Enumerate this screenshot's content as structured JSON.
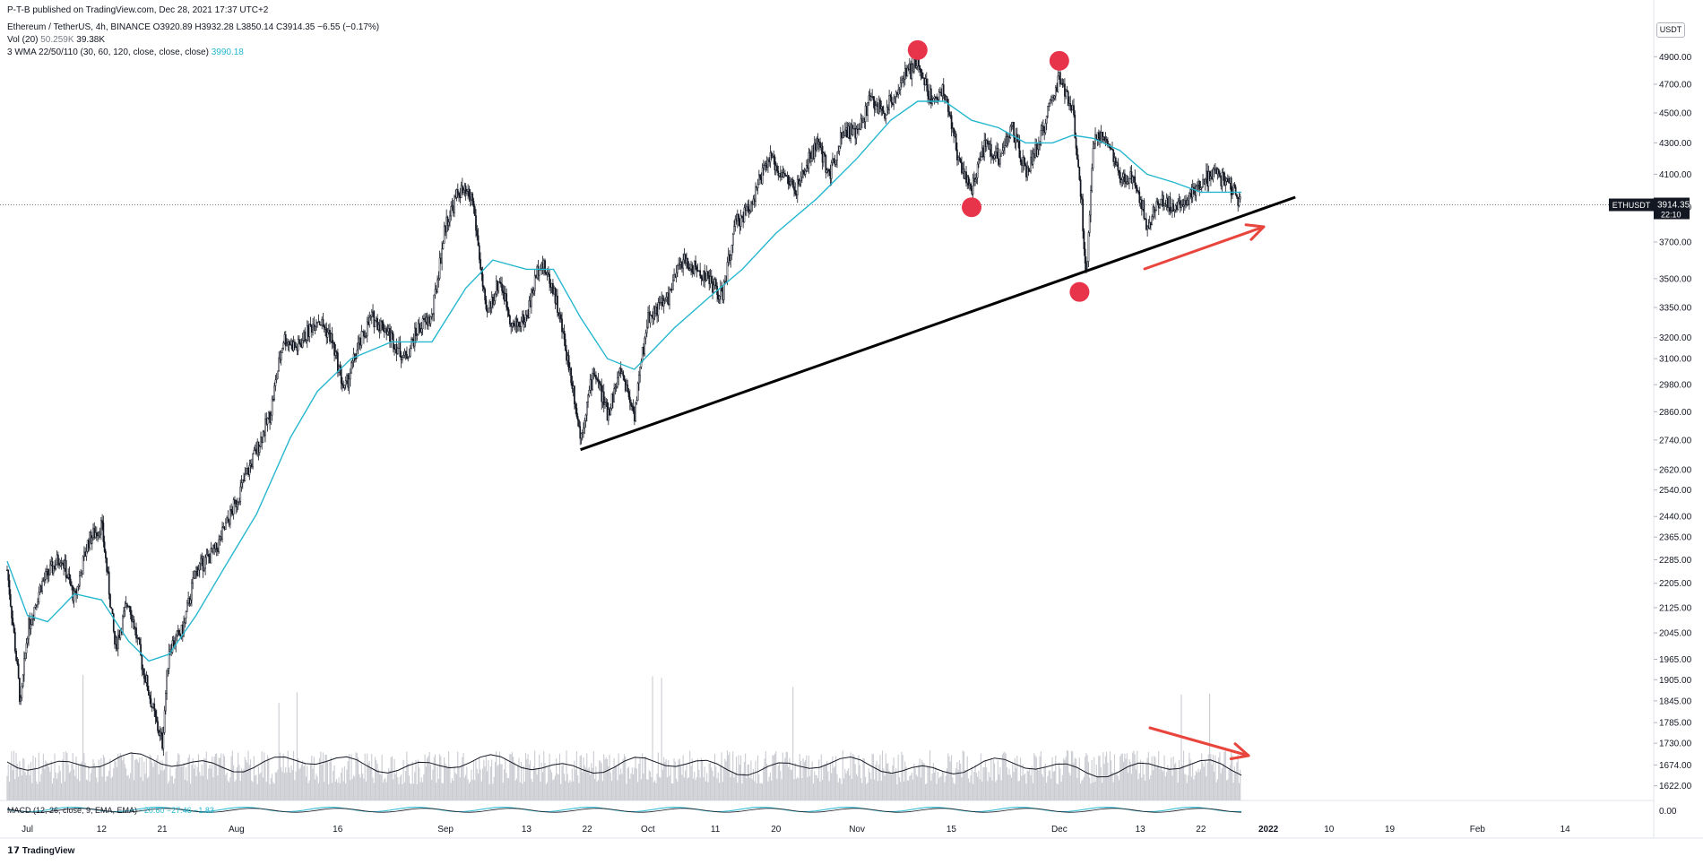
{
  "header": {
    "published": "P-T-B published on TradingView.com, Dec 28, 2021 17:37 UTC+2",
    "symbol_line": "Ethereum / TetherUS, 4h, BINANCE  O3920.89  H3932.28  L3850.14  C3914.35  −6.55 (−0.17%)",
    "vol_label": "Vol (20)",
    "vol_ma": "50.259K",
    "vol_value": "39.38K",
    "wma_label": "3 WMA 22/50/110 (30, 60, 120, close, close, close)",
    "wma_value": "3990.18",
    "macd_label": "MACD (12, 26, close, 9, EMA, EMA)",
    "macd_values": "−20.60   −27.46   −1.83"
  },
  "currency_badge": "USDT",
  "price_tag": {
    "symbol": "ETHUSDT",
    "price": "3914.35",
    "countdown": "22:10"
  },
  "footer": {
    "logo": "TradingView"
  },
  "colors": {
    "candle": "#131722",
    "wma": "#26b7cf",
    "volume": "#c9cbd1",
    "annotation_dot": "#e8344a",
    "arrow": "#e8453c",
    "trendline": "#000000"
  },
  "chart_data": {
    "type": "candlestick",
    "timeframe": "4h",
    "y_scale": "log",
    "y_ticks": [
      "4900.00",
      "4700.00",
      "4500.00",
      "4300.00",
      "4100.00",
      "3900.00",
      "3700.00",
      "3500.00",
      "3350.00",
      "3200.00",
      "3100.00",
      "2980.00",
      "2860.00",
      "2740.00",
      "2620.00",
      "2540.00",
      "2440.00",
      "2365.00",
      "2285.00",
      "2205.00",
      "2125.00",
      "2045.00",
      "1965.00",
      "1905.00",
      "1845.00",
      "1785.00",
      "1730.00",
      "1674.00",
      "1622.00"
    ],
    "macd_tick": "0.00",
    "x_ticks": [
      "Jul",
      "12",
      "21",
      "Aug",
      "16",
      "Sep",
      "13",
      "22",
      "Oct",
      "11",
      "20",
      "Nov",
      "15",
      "Dec",
      "13",
      "22",
      "2022",
      "10",
      "19",
      "Feb",
      "14"
    ],
    "price_path": [
      [
        "2021-06-28",
        2250
      ],
      [
        "2021-06-30",
        1830
      ],
      [
        "2021-07-01",
        2050
      ],
      [
        "2021-07-03",
        2200
      ],
      [
        "2021-07-06",
        2300
      ],
      [
        "2021-07-08",
        2150
      ],
      [
        "2021-07-10",
        2350
      ],
      [
        "2021-07-12",
        2410
      ],
      [
        "2021-07-14",
        2000
      ],
      [
        "2021-07-16",
        2150
      ],
      [
        "2021-07-18",
        1950
      ],
      [
        "2021-07-20",
        1790
      ],
      [
        "2021-07-21",
        1730
      ],
      [
        "2021-07-22",
        2000
      ],
      [
        "2021-07-24",
        2050
      ],
      [
        "2021-07-26",
        2250
      ],
      [
        "2021-07-29",
        2320
      ],
      [
        "2021-08-01",
        2500
      ],
      [
        "2021-08-04",
        2700
      ],
      [
        "2021-08-06",
        2850
      ],
      [
        "2021-08-08",
        3200
      ],
      [
        "2021-08-10",
        3150
      ],
      [
        "2021-08-13",
        3300
      ],
      [
        "2021-08-15",
        3200
      ],
      [
        "2021-08-17",
        2950
      ],
      [
        "2021-08-19",
        3150
      ],
      [
        "2021-08-21",
        3300
      ],
      [
        "2021-08-23",
        3250
      ],
      [
        "2021-08-26",
        3100
      ],
      [
        "2021-08-28",
        3250
      ],
      [
        "2021-08-30",
        3300
      ],
      [
        "2021-09-01",
        3800
      ],
      [
        "2021-09-03",
        4000
      ],
      [
        "2021-09-05",
        3950
      ],
      [
        "2021-09-07",
        3300
      ],
      [
        "2021-09-09",
        3500
      ],
      [
        "2021-09-11",
        3250
      ],
      [
        "2021-09-13",
        3300
      ],
      [
        "2021-09-15",
        3600
      ],
      [
        "2021-09-17",
        3450
      ],
      [
        "2021-09-20",
        2950
      ],
      [
        "2021-09-21",
        2750
      ],
      [
        "2021-09-23",
        3050
      ],
      [
        "2021-09-25",
        2850
      ],
      [
        "2021-09-27",
        3050
      ],
      [
        "2021-09-29",
        2850
      ],
      [
        "2021-10-01",
        3300
      ],
      [
        "2021-10-04",
        3400
      ],
      [
        "2021-10-06",
        3600
      ],
      [
        "2021-10-08",
        3550
      ],
      [
        "2021-10-10",
        3500
      ],
      [
        "2021-10-12",
        3400
      ],
      [
        "2021-10-14",
        3800
      ],
      [
        "2021-10-16",
        3900
      ],
      [
        "2021-10-19",
        4200
      ],
      [
        "2021-10-21",
        4100
      ],
      [
        "2021-10-23",
        4000
      ],
      [
        "2021-10-26",
        4300
      ],
      [
        "2021-10-28",
        4100
      ],
      [
        "2021-10-30",
        4400
      ],
      [
        "2021-11-01",
        4350
      ],
      [
        "2021-11-03",
        4600
      ],
      [
        "2021-11-05",
        4500
      ],
      [
        "2021-11-08",
        4750
      ],
      [
        "2021-11-10",
        4850
      ],
      [
        "2021-11-12",
        4600
      ],
      [
        "2021-11-14",
        4650
      ],
      [
        "2021-11-16",
        4200
      ],
      [
        "2021-11-18",
        4000
      ],
      [
        "2021-11-20",
        4300
      ],
      [
        "2021-11-22",
        4200
      ],
      [
        "2021-11-24",
        4400
      ],
      [
        "2021-11-26",
        4100
      ],
      [
        "2021-11-28",
        4300
      ],
      [
        "2021-11-30",
        4600
      ],
      [
        "2021-12-01",
        4750
      ],
      [
        "2021-12-03",
        4500
      ],
      [
        "2021-12-04",
        4100
      ],
      [
        "2021-12-05",
        3500
      ],
      [
        "2021-12-06",
        4300
      ],
      [
        "2021-12-08",
        4350
      ],
      [
        "2021-12-10",
        4050
      ],
      [
        "2021-12-12",
        4100
      ],
      [
        "2021-12-14",
        3800
      ],
      [
        "2021-12-16",
        3950
      ],
      [
        "2021-12-18",
        3900
      ],
      [
        "2021-12-20",
        3950
      ],
      [
        "2021-12-22",
        4050
      ],
      [
        "2021-12-24",
        4100
      ],
      [
        "2021-12-26",
        4050
      ],
      [
        "2021-12-28",
        3914.35
      ]
    ],
    "wma_path": [
      [
        "2021-06-28",
        2280
      ],
      [
        "2021-07-01",
        2100
      ],
      [
        "2021-07-04",
        2080
      ],
      [
        "2021-07-08",
        2170
      ],
      [
        "2021-07-12",
        2150
      ],
      [
        "2021-07-16",
        2020
      ],
      [
        "2021-07-19",
        1960
      ],
      [
        "2021-07-22",
        1980
      ],
      [
        "2021-07-26",
        2100
      ],
      [
        "2021-07-30",
        2250
      ],
      [
        "2021-08-04",
        2450
      ],
      [
        "2021-08-09",
        2750
      ],
      [
        "2021-08-13",
        2950
      ],
      [
        "2021-08-18",
        3100
      ],
      [
        "2021-08-24",
        3180
      ],
      [
        "2021-08-30",
        3180
      ],
      [
        "2021-09-04",
        3450
      ],
      [
        "2021-09-08",
        3600
      ],
      [
        "2021-09-13",
        3550
      ],
      [
        "2021-09-17",
        3550
      ],
      [
        "2021-09-21",
        3300
      ],
      [
        "2021-09-25",
        3100
      ],
      [
        "2021-09-29",
        3050
      ],
      [
        "2021-10-05",
        3250
      ],
      [
        "2021-10-10",
        3400
      ],
      [
        "2021-10-15",
        3550
      ],
      [
        "2021-10-20",
        3750
      ],
      [
        "2021-10-26",
        3950
      ],
      [
        "2021-11-01",
        4200
      ],
      [
        "2021-11-06",
        4450
      ],
      [
        "2021-11-10",
        4580
      ],
      [
        "2021-11-14",
        4580
      ],
      [
        "2021-11-18",
        4450
      ],
      [
        "2021-11-22",
        4400
      ],
      [
        "2021-11-26",
        4300
      ],
      [
        "2021-11-30",
        4300
      ],
      [
        "2021-12-03",
        4350
      ],
      [
        "2021-12-06",
        4330
      ],
      [
        "2021-12-10",
        4250
      ],
      [
        "2021-12-14",
        4100
      ],
      [
        "2021-12-18",
        4050
      ],
      [
        "2021-12-22",
        3990
      ],
      [
        "2021-12-28",
        3990.18
      ]
    ],
    "annotations": {
      "tops": [
        [
          "2021-11-10",
          4950
        ],
        [
          "2021-12-01",
          4870
        ]
      ],
      "bottoms": [
        [
          "2021-11-18",
          3900
        ],
        [
          "2021-12-04",
          3430
        ]
      ],
      "trendline": [
        [
          "2021-09-21",
          2700
        ],
        [
          "2022-01-05",
          3960
        ]
      ],
      "arrows": [
        "price rising along trendline",
        "volume declining"
      ]
    }
  }
}
